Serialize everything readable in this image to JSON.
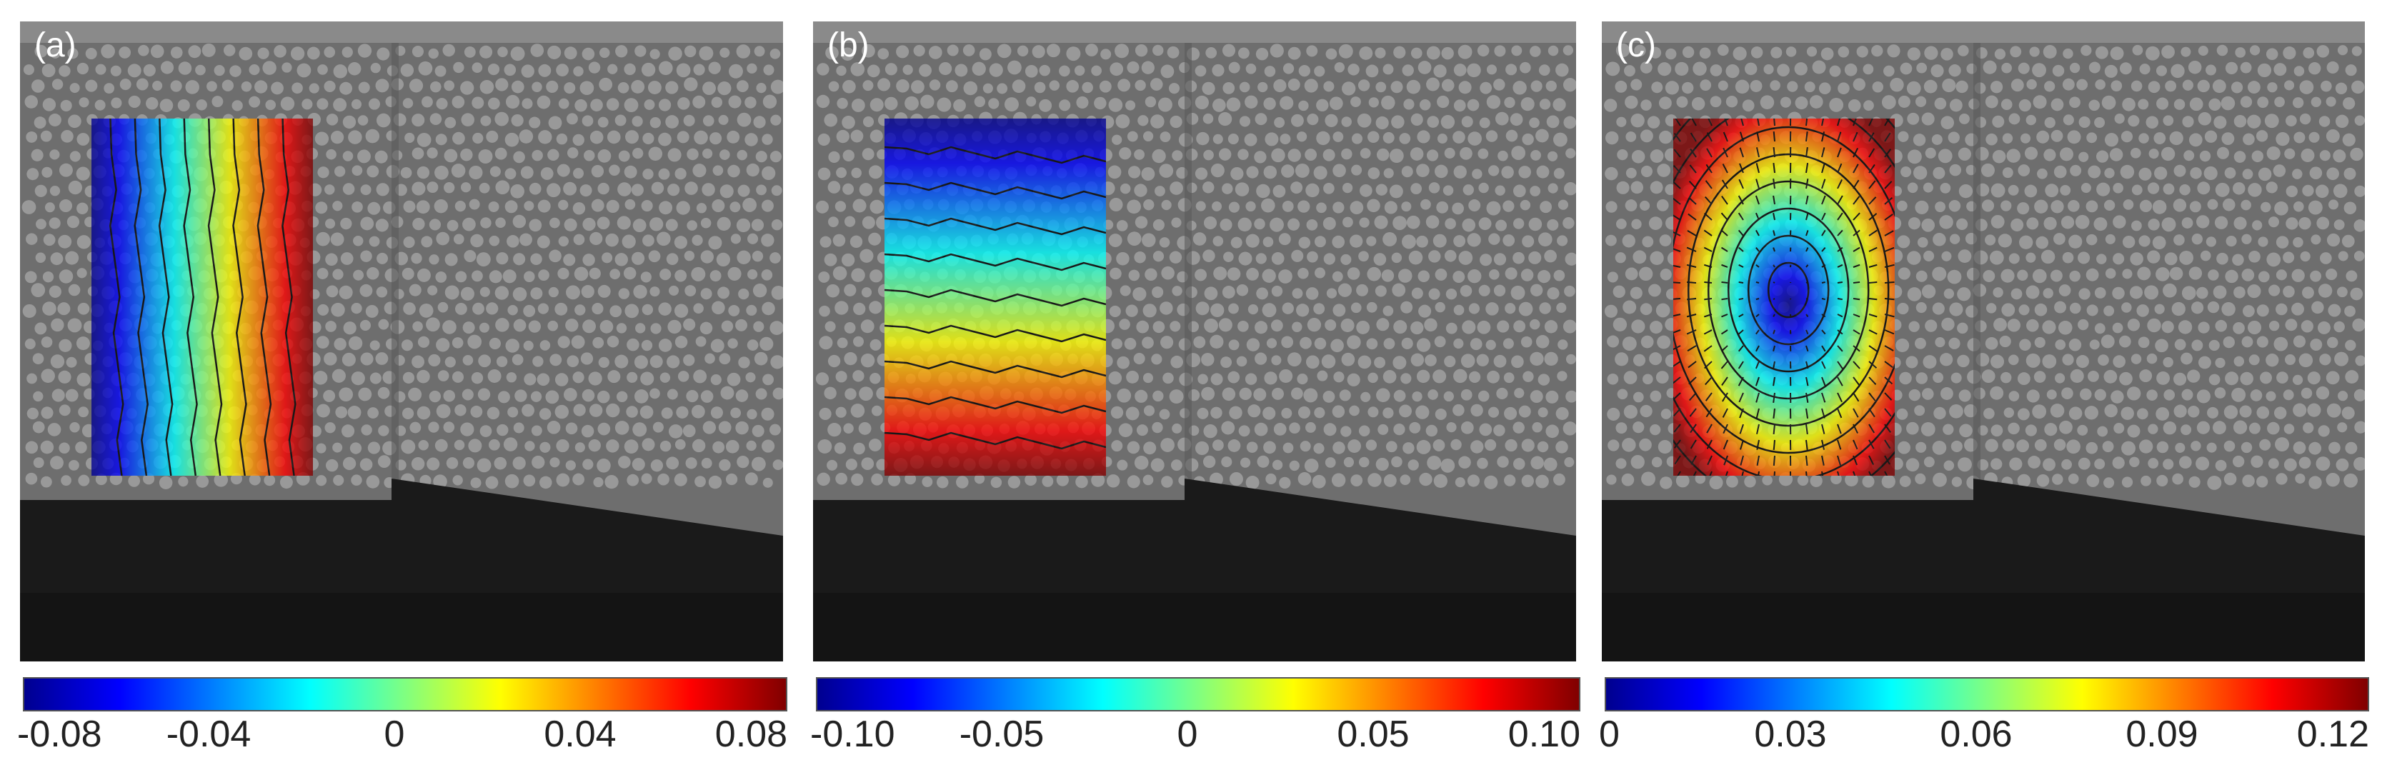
{
  "panels": [
    {
      "label": "(a)",
      "pattern": "vertical",
      "ticks": [
        "-0.08",
        "-0.04",
        "0",
        "0.04",
        "0.08"
      ],
      "range": [
        -0.08,
        0.08
      ]
    },
    {
      "label": "(b)",
      "pattern": "horizontal",
      "ticks": [
        "-0.10",
        "-0.05",
        "0",
        "0.05",
        "0.10"
      ],
      "range": [
        -0.1,
        0.1
      ]
    },
    {
      "label": "(c)",
      "pattern": "radial",
      "ticks": [
        "0",
        "0.03",
        "0.06",
        "0.09",
        "0.12"
      ],
      "range": [
        0,
        0.12
      ]
    }
  ],
  "colormap": [
    "#00008f",
    "#0000ff",
    "#0080ff",
    "#00ffff",
    "#80ff80",
    "#ffff00",
    "#ff8000",
    "#ff0000",
    "#800000"
  ]
}
